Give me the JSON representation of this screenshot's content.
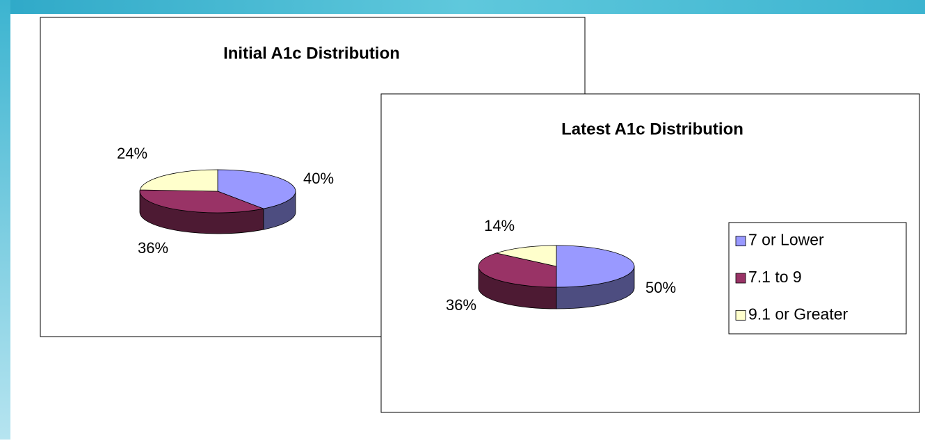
{
  "chart_data": [
    {
      "type": "pie",
      "title": "Initial A1c Distribution",
      "values": [
        40,
        36,
        24
      ],
      "value_labels": [
        "40%",
        "36%",
        "24%"
      ],
      "colors": [
        "#9999ff",
        "#993366",
        "#ffffcc"
      ]
    },
    {
      "type": "pie",
      "title": "Latest A1c Distribution",
      "categories": [
        "7 or Lower",
        "7.1 to 9",
        "9.1 or Greater"
      ],
      "values": [
        50,
        36,
        14
      ],
      "value_labels": [
        "50%",
        "36%",
        "14%"
      ],
      "colors": [
        "#9999ff",
        "#993366",
        "#ffffcc"
      ],
      "legend": "right"
    }
  ]
}
